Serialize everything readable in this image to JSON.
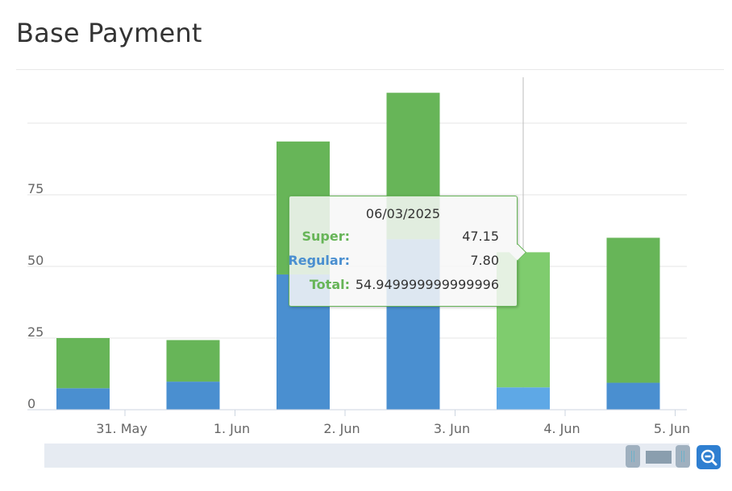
{
  "title": "Base Payment",
  "chart_data": {
    "type": "bar",
    "stacked": true,
    "title": "Base Payment",
    "categories": [
      "31. May",
      "1. Jun",
      "2. Jun",
      "3. Jun",
      "4. Jun",
      "5. Jun"
    ],
    "y_ticks": [
      "0",
      "25",
      "50",
      "75"
    ],
    "series": [
      {
        "name": "Regular",
        "color": "#4a8fd0",
        "values": [
          7.5,
          9.8,
          47.2,
          59.5,
          7.8,
          9.4
        ]
      },
      {
        "name": "Super",
        "color": "#67b558",
        "values": [
          17.5,
          14.5,
          46.4,
          51.1,
          47.15,
          50.6
        ]
      }
    ],
    "ylim": [
      0,
      110
    ],
    "grid": true,
    "highlighted_index": 4
  },
  "tooltip": {
    "date": "06/03/2025",
    "rows": [
      {
        "label": "Super:",
        "value": "47.15",
        "color": "#67b558"
      },
      {
        "label": "Regular:",
        "value": "7.80",
        "color": "#4a8fd0"
      },
      {
        "label": "Total:",
        "value": "54.949999999999996",
        "color": "#67b558"
      }
    ]
  },
  "navigator": {
    "zoom_icon": "zoom-out-icon"
  }
}
